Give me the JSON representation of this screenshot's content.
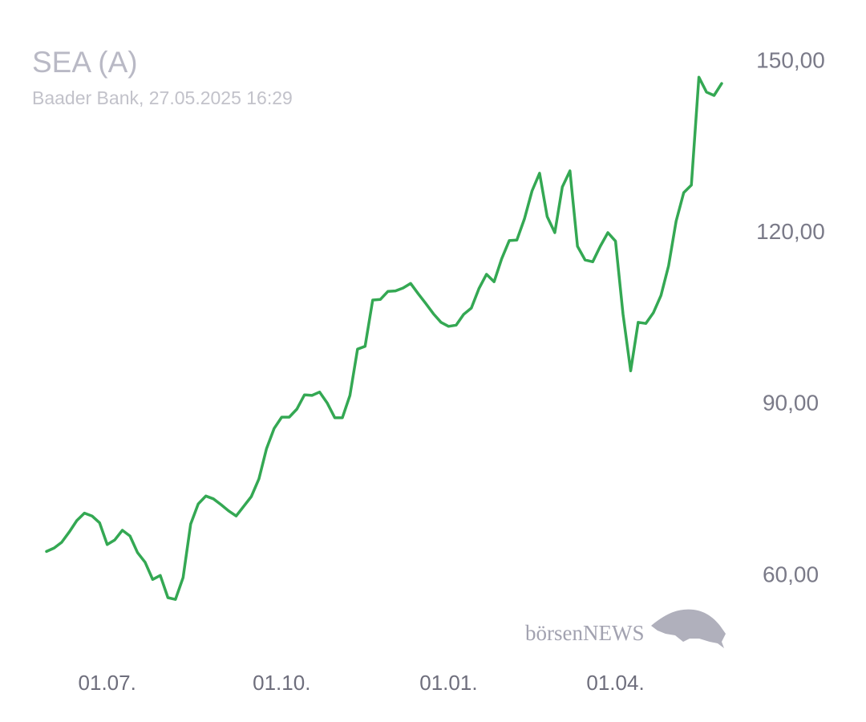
{
  "chart_data": {
    "type": "line",
    "title": "SEA (A)",
    "subtitle": "Baader Bank, 27.05.2025 16:29",
    "watermark": "börsenNEWS",
    "categories": [
      null,
      null,
      null,
      null,
      null,
      null,
      null,
      null,
      "01.07.",
      null,
      null,
      null,
      null,
      null,
      null,
      null,
      null,
      null,
      null,
      null,
      null,
      null,
      null,
      null,
      null,
      null,
      null,
      null,
      null,
      null,
      null,
      "01.10.",
      null,
      null,
      null,
      null,
      null,
      null,
      null,
      null,
      null,
      null,
      null,
      null,
      null,
      null,
      null,
      null,
      null,
      null,
      null,
      null,
      null,
      "01.01.",
      null,
      null,
      null,
      null,
      null,
      null,
      null,
      null,
      null,
      null,
      null,
      null,
      null,
      null,
      null,
      null,
      null,
      null,
      null,
      null,
      null,
      "01.04.",
      null,
      null,
      null,
      null,
      null,
      null,
      null,
      null,
      null,
      null,
      null,
      null,
      null,
      null
    ],
    "values": [
      64.3,
      64.9,
      65.9,
      67.7,
      69.7,
      71.0,
      70.5,
      69.3,
      65.5,
      66.3,
      68.0,
      67.0,
      64.1,
      62.4,
      59.4,
      60.1,
      56.2,
      55.9,
      59.7,
      69.1,
      72.6,
      74.0,
      73.5,
      72.5,
      71.4,
      70.5,
      72.2,
      73.9,
      77.0,
      82.3,
      85.8,
      87.8,
      87.8,
      89.2,
      91.7,
      91.6,
      92.2,
      90.3,
      87.7,
      87.7,
      91.6,
      99.7,
      100.2,
      108.3,
      108.4,
      109.8,
      109.9,
      110.4,
      111.2,
      109.4,
      107.7,
      105.9,
      104.4,
      103.7,
      103.9,
      105.8,
      106.9,
      110.3,
      112.8,
      111.5,
      115.5,
      118.7,
      118.8,
      122.5,
      127.4,
      130.5,
      122.9,
      120.1,
      128.1,
      130.9,
      117.7,
      115.3,
      115.0,
      117.7,
      120.1,
      118.6,
      105.8,
      95.9,
      104.4,
      104.2,
      106.1,
      109.1,
      114.3,
      122.1,
      127.1,
      128.4,
      147.3,
      144.7,
      144.1,
      146.2
    ],
    "color": "#34a853",
    "ylim": [
      50,
      155
    ],
    "yticks": [
      {
        "value": 60,
        "label": "60,00"
      },
      {
        "value": 90,
        "label": "90,00"
      },
      {
        "value": 120,
        "label": "120,00"
      },
      {
        "value": 150,
        "label": "150,00"
      }
    ],
    "grid": false
  }
}
